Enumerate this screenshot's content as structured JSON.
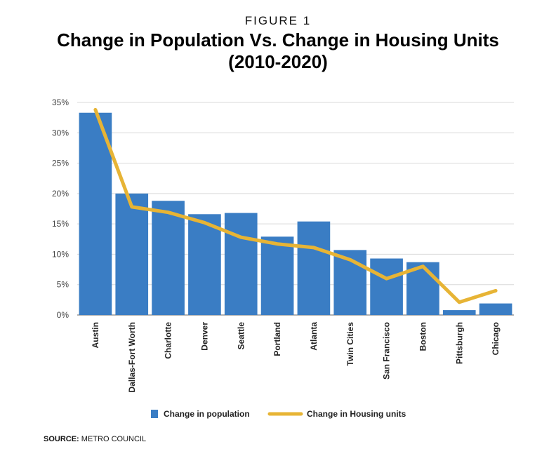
{
  "figure_label": "FIGURE 1",
  "title_line1": "Change in Population Vs. Change in Housing Units",
  "title_line2": "(2010-2020)",
  "source": {
    "label": "SOURCE:",
    "value": " METRO COUNCIL"
  },
  "colors": {
    "bar": "#3a7dc4",
    "line": "#e7b435",
    "grid": "#d9d9d9",
    "axis": "#999999"
  },
  "chart_data": {
    "type": "bar",
    "title": "Change in Population Vs. Change in Housing Units (2010-2020)",
    "xlabel": "",
    "ylabel": "",
    "ylim": [
      0,
      35
    ],
    "yticks": [
      0,
      5,
      10,
      15,
      20,
      25,
      30,
      35
    ],
    "ytick_labels": [
      "0%",
      "5%",
      "10%",
      "15%",
      "20%",
      "25%",
      "30%",
      "35%"
    ],
    "grid": true,
    "legend_position": "bottom-center",
    "categories": [
      "Austin",
      "Dallas-Fort Worth",
      "Charlotte",
      "Denver",
      "Seattle",
      "Portland",
      "Atlanta",
      "Twin Cities",
      "San Francisco",
      "Boston",
      "Pittsburgh",
      "Chicago"
    ],
    "series": [
      {
        "name": "Change in population",
        "type": "bar",
        "values": [
          33.3,
          20.0,
          18.8,
          16.6,
          16.8,
          12.9,
          15.4,
          10.7,
          9.3,
          8.7,
          0.8,
          1.9
        ]
      },
      {
        "name": "Change in Housing units",
        "type": "line",
        "values": [
          33.8,
          17.8,
          16.9,
          15.2,
          12.8,
          11.7,
          11.1,
          9.1,
          6.0,
          8.0,
          2.1,
          4.0
        ]
      }
    ]
  }
}
